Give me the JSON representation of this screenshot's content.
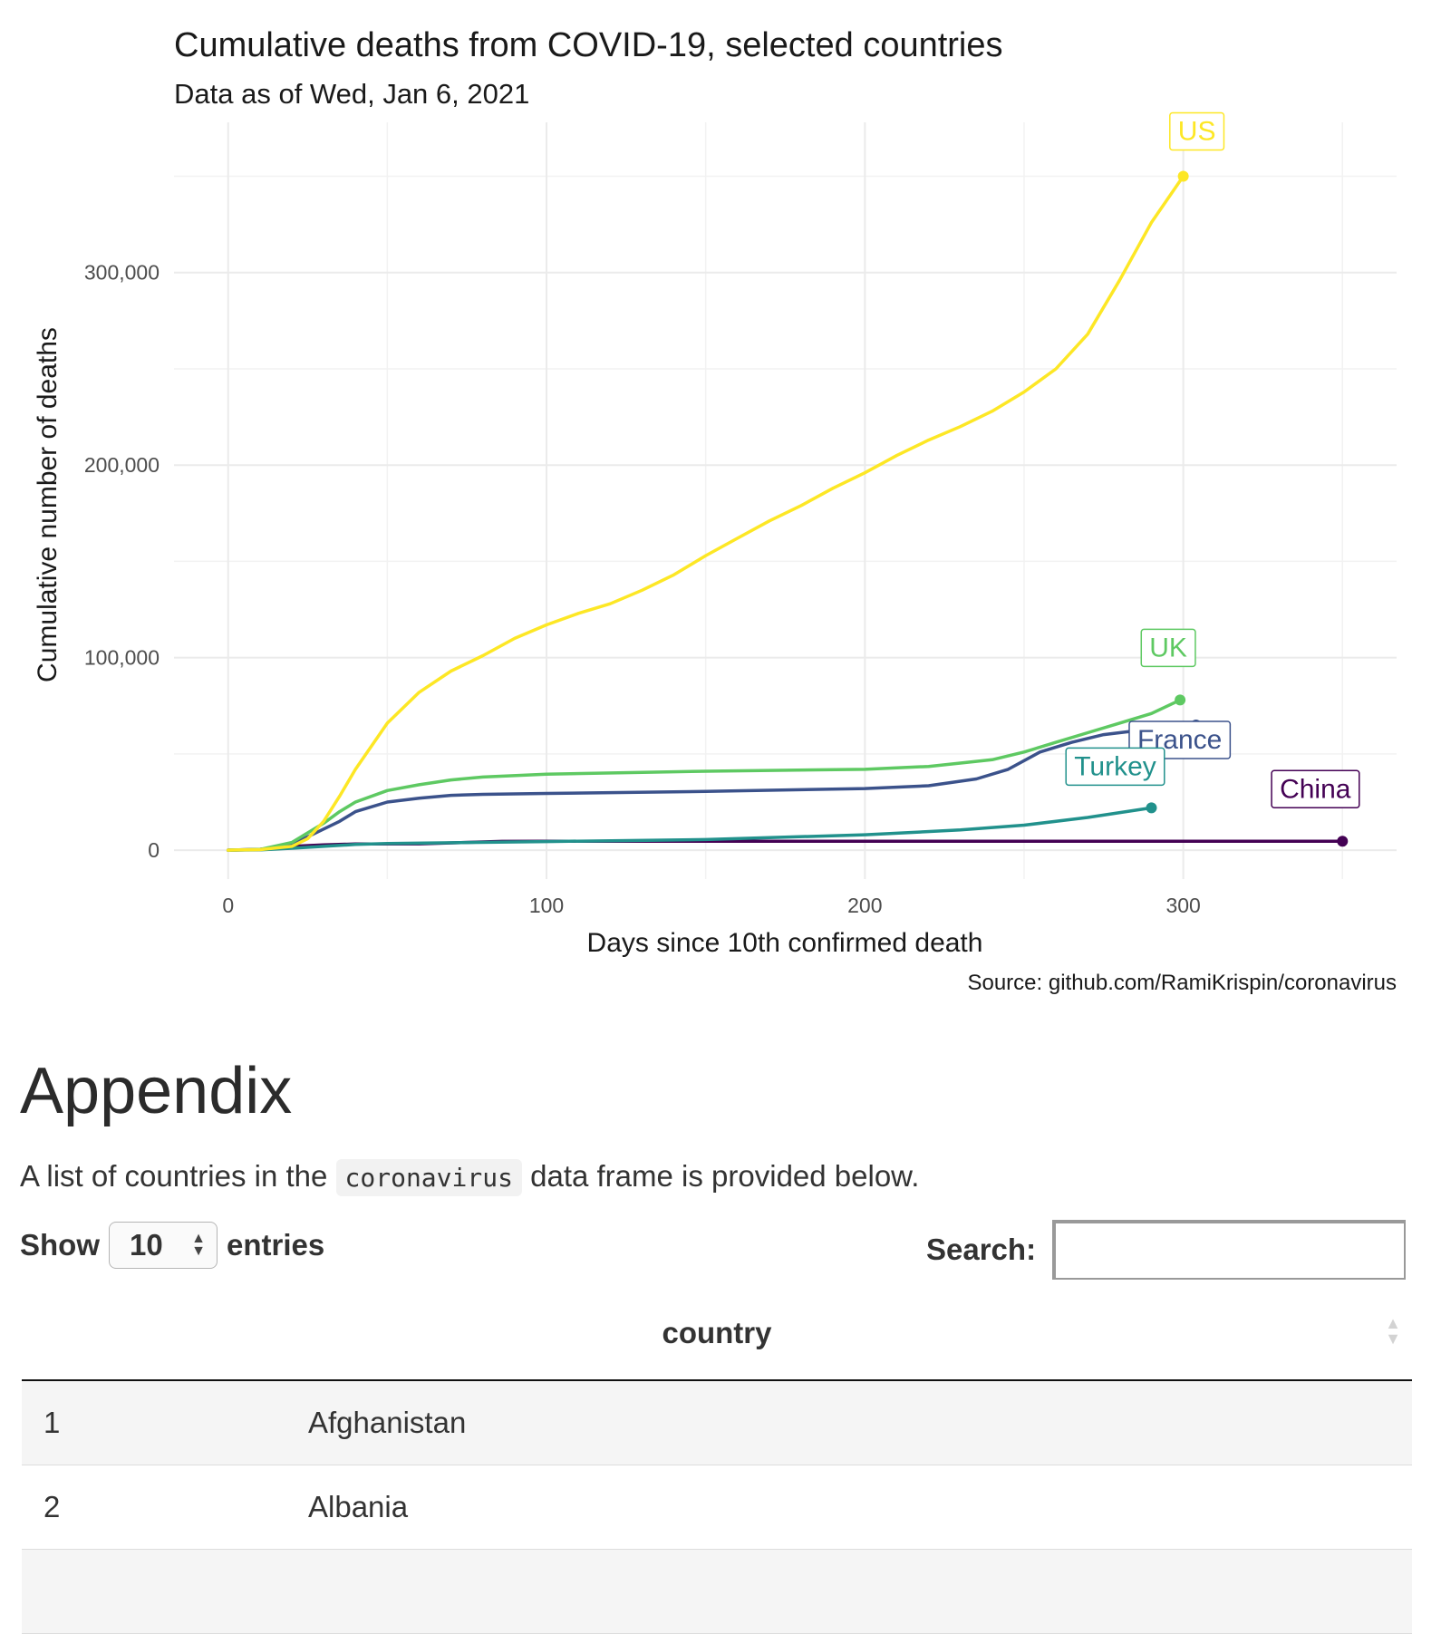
{
  "chart_data": {
    "type": "line",
    "title": "Cumulative deaths from COVID-19, selected countries",
    "subtitle": "Data as of Wed, Jan 6, 2021",
    "xlabel": "Days since 10th confirmed death",
    "ylabel": "Cumulative number of deaths",
    "caption": "Source: github.com/RamiKrispin/coronavirus",
    "xlim": [
      -17,
      367
    ],
    "ylim": [
      -15000,
      378000
    ],
    "xticks": [
      0,
      100,
      200,
      300
    ],
    "xtick_labels": [
      "0",
      "100",
      "200",
      "300"
    ],
    "yticks": [
      0,
      100000,
      200000,
      300000
    ],
    "ytick_labels": [
      "0",
      "100,000",
      "200,000",
      "300,000"
    ],
    "grid": true,
    "legend": "none (direct labels)",
    "series": [
      {
        "name": "US",
        "color": "#fde725",
        "x": [
          0,
          10,
          20,
          25,
          30,
          35,
          40,
          50,
          60,
          70,
          80,
          90,
          100,
          110,
          120,
          130,
          140,
          150,
          160,
          170,
          180,
          190,
          200,
          210,
          220,
          230,
          240,
          250,
          260,
          270,
          280,
          290,
          300
        ],
        "y": [
          0,
          300,
          2000,
          6000,
          15000,
          28000,
          42000,
          66000,
          82000,
          93000,
          101000,
          110000,
          117000,
          123000,
          128000,
          135000,
          143000,
          153000,
          162000,
          171000,
          179000,
          188000,
          196000,
          205000,
          213000,
          220000,
          228000,
          238000,
          250000,
          268000,
          296000,
          326000,
          350000
        ]
      },
      {
        "name": "UK",
        "color": "#5ec962",
        "x": [
          0,
          10,
          20,
          25,
          30,
          35,
          40,
          50,
          60,
          70,
          80,
          100,
          150,
          200,
          220,
          240,
          250,
          260,
          270,
          280,
          290,
          299
        ],
        "y": [
          0,
          400,
          4000,
          9000,
          14000,
          20000,
          25000,
          31000,
          34000,
          36500,
          38000,
          39500,
          41000,
          42000,
          43500,
          47000,
          51000,
          56000,
          61000,
          66000,
          71000,
          78000
        ]
      },
      {
        "name": "France",
        "color": "#3b528b",
        "x": [
          0,
          10,
          20,
          25,
          30,
          35,
          40,
          50,
          60,
          70,
          80,
          100,
          150,
          200,
          220,
          235,
          245,
          255,
          265,
          275,
          290,
          304
        ],
        "y": [
          0,
          300,
          3000,
          7000,
          11000,
          15000,
          20000,
          25000,
          27000,
          28500,
          29000,
          29500,
          30500,
          32000,
          33500,
          37000,
          42000,
          51000,
          56000,
          60000,
          63000,
          65000
        ]
      },
      {
        "name": "Turkey",
        "color": "#21918c",
        "x": [
          0,
          10,
          20,
          30,
          40,
          50,
          100,
          150,
          200,
          230,
          250,
          270,
          290
        ],
        "y": [
          0,
          200,
          1000,
          2000,
          3000,
          3500,
          4500,
          5500,
          8000,
          10500,
          13000,
          17000,
          22000
        ]
      },
      {
        "name": "China",
        "color": "#440154",
        "x": [
          0,
          10,
          20,
          30,
          40,
          60,
          86,
          100,
          200,
          350
        ],
        "y": [
          0,
          500,
          2000,
          2800,
          3200,
          3300,
          4600,
          4630,
          4640,
          4650
        ]
      }
    ]
  },
  "appendix": {
    "heading": "Appendix",
    "desc_before": "A list of countries in the ",
    "desc_code": "coronavirus",
    "desc_after": " data frame is provided below."
  },
  "table_controls": {
    "show_label": "Show",
    "entries_value": "10",
    "entries_label": "entries",
    "search_label": "Search:",
    "search_value": ""
  },
  "table": {
    "column": "country",
    "rows": [
      {
        "index": "1",
        "country": "Afghanistan"
      },
      {
        "index": "2",
        "country": "Albania"
      },
      {
        "index": "",
        "country": ""
      }
    ]
  }
}
